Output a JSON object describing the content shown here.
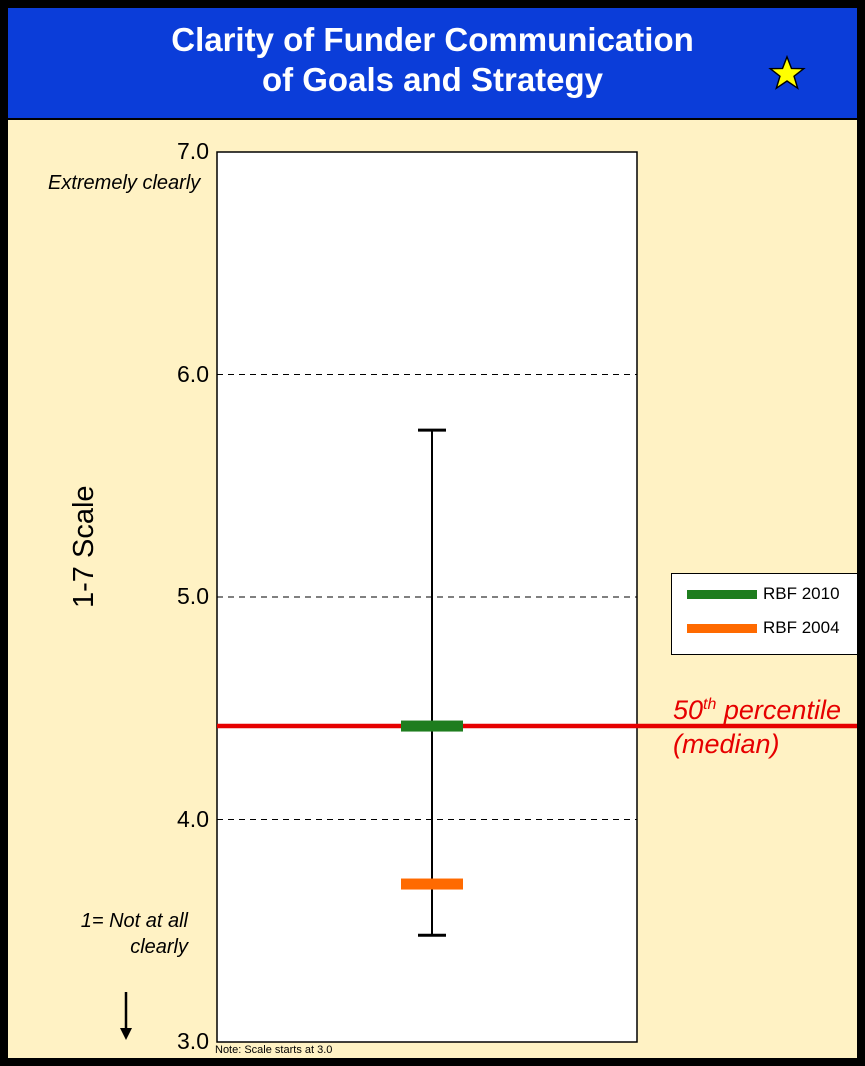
{
  "header": {
    "title_line1": "Clarity of Funder Communication",
    "title_line2": "of Goals and Strategy",
    "star_color": "#FFFF00"
  },
  "chart_data": {
    "type": "range",
    "title": "Clarity of Funder Communication of Goals and Strategy",
    "ylabel": "1-7 Scale",
    "ylim": [
      3.0,
      7.0
    ],
    "yticks": [
      "3.0",
      "4.0",
      "5.0",
      "6.0",
      "7.0"
    ],
    "grid": true,
    "top_annotation": "Extremely clearly",
    "bottom_annotation": "1= Not at all clearly",
    "note": "Note: Scale starts at 3.0",
    "range": {
      "min": 3.48,
      "max": 5.75
    },
    "median": {
      "value": 4.42,
      "label_main": "50",
      "label_sup": "th",
      "label_rest": " percentile",
      "label_line2": "(median)",
      "color": "#E60000"
    },
    "series": [
      {
        "name": "RBF 2010",
        "value": 4.42,
        "color": "#1E7D1E"
      },
      {
        "name": "RBF 2004",
        "value": 3.71,
        "color": "#FF6A00"
      }
    ],
    "legend_placement": "right"
  }
}
